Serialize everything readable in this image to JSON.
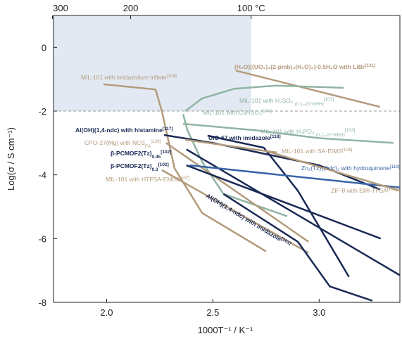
{
  "chart_data": {
    "type": "line",
    "xlabel": "1000T⁻¹ / K⁻¹",
    "ylabel": "Log(σ / S cm⁻¹)",
    "xlim": [
      1.75,
      3.38
    ],
    "ylim": [
      -8,
      1
    ],
    "xticks": [
      {
        "value": 2,
        "label": "2.0"
      },
      {
        "value": 2.5,
        "label": "2.5"
      },
      {
        "value": 3,
        "label": "3.0"
      }
    ],
    "yticks": [
      0,
      -2,
      -4,
      -6,
      -8
    ],
    "xticks_top": [
      {
        "value": 1.745,
        "label": "300"
      },
      {
        "value": 2.113,
        "label": "200"
      },
      {
        "value": 2.68,
        "label": "100 °C"
      }
    ],
    "shaded_region": {
      "xlim": [
        1.75,
        2.68
      ],
      "ylim": [
        -2,
        1
      ],
      "color": "#e3e9f3"
    },
    "reference_line": -2,
    "series": [
      {
        "name": [
          {
            "text": "MIL-101 with imidazolium triflate"
          },
          {
            "text": "[106]",
            "sup": true
          }
        ],
        "color": "#b39b7b",
        "x": [
          1.985,
          2.23,
          2.26,
          2.32,
          2.45,
          2.75
        ],
        "values": [
          -1.16,
          -1.32,
          -2.0,
          -3.8,
          -5.2,
          -6.4
        ]
      },
      {
        "name": [
          {
            "text": "(H₂O)[(UO₂)₄(2-pmb)₃(H₂O)₃]·0.5H₂O with LiBr"
          },
          {
            "text": "[121]",
            "sup": true
          }
        ],
        "color": "#b39b7b",
        "bold": true,
        "x": [
          2.608,
          3.287
        ],
        "values": [
          -0.73,
          -1.87
        ]
      },
      {
        "name": [
          {
            "text": "MIL-101 with H₂SO₄ "
          },
          {
            "text": "(0.1–20 %RH)",
            "sub": true
          },
          {
            "text": "[103]",
            "sup": true
          }
        ],
        "color": "#8fb5a3",
        "x": [
          2.37,
          2.45,
          2.6,
          2.8,
          3.115
        ],
        "values": [
          -2.0,
          -1.6,
          -1.3,
          -1.2,
          -1.27
        ]
      },
      {
        "name": [
          {
            "text": "MIL-101 with CsHSO₄"
          },
          {
            "text": "[104]",
            "sup": true
          }
        ],
        "color": "#8fb5a3",
        "x": [
          2.36,
          2.38,
          2.45,
          2.55,
          2.85
        ],
        "values": [
          -2.1,
          -2.6,
          -3.6,
          -4.6,
          -5.3
        ]
      },
      {
        "name": [
          {
            "text": "MIL-101 with H₃PO₄ "
          },
          {
            "text": "(0.1–20 %RH)",
            "sub": true
          },
          {
            "text": "[103]",
            "sup": true
          }
        ],
        "color": "#8fb5a3",
        "x": [
          2.36,
          2.7,
          3.0,
          3.35
        ],
        "values": [
          -2.4,
          -2.6,
          -2.85,
          -3.0
        ]
      },
      {
        "name": [
          {
            "text": "Al(OH)(1,4-ndc) with histamine"
          },
          {
            "text": "[117]",
            "sup": true
          }
        ],
        "color": "#1a2a55",
        "bold": true,
        "x": [
          2.27,
          2.5,
          3.0,
          3.287
        ],
        "values": [
          -2.75,
          -3.0,
          -3.7,
          -4.46
        ]
      },
      {
        "name": [
          {
            "text": "UiO-67 with imidazole"
          },
          {
            "text": "[118]",
            "sup": true
          }
        ],
        "color": "#1a2a55",
        "bold": true,
        "x": [
          2.475,
          2.74,
          2.9,
          3.14
        ],
        "values": [
          -2.77,
          -3.15,
          -4.5,
          -7.2
        ]
      },
      {
        "name": [
          {
            "text": "CPO-27(Mg) with NCS"
          },
          {
            "text": "FA",
            "sub": true
          },
          {
            "text": "[120]",
            "sup": true
          }
        ],
        "color": "#b39b7b",
        "x": [
          2.28,
          2.95
        ],
        "values": [
          -3.0,
          -6.1
        ]
      },
      {
        "name": [
          {
            "text": "MIL-101 with SA-EIMS"
          },
          {
            "text": "[108]",
            "sup": true
          }
        ],
        "color": "#b39b7b",
        "x": [
          2.37,
          2.8
        ],
        "values": [
          -2.9,
          -3.3
        ]
      },
      {
        "name": [
          {
            "text": "β-PCMOF2(Tz)"
          },
          {
            "text": "0.45",
            "sub": true
          },
          {
            "text": "[102]",
            "sup": true
          }
        ],
        "color": "#1a2a55",
        "bold": true,
        "x": [
          2.375,
          3.38
        ],
        "values": [
          -3.2,
          -7.15
        ]
      },
      {
        "name": [
          {
            "text": "β-PCMOF2(Tz)"
          },
          {
            "text": "0.3",
            "sub": true
          },
          {
            "text": "[102]",
            "sup": true
          }
        ],
        "color": "#1a2a55",
        "bold": true,
        "x": [
          2.375,
          3.29
        ],
        "values": [
          -3.7,
          -6.0
        ]
      },
      {
        "name": [
          {
            "text": "Zn₂(Tz)₂(bdc)₂ with hydroquinone"
          },
          {
            "text": "[119]",
            "sup": true
          }
        ],
        "color": "#3a64a8",
        "x": [
          2.39,
          3.38
        ],
        "values": [
          -3.7,
          -4.4
        ]
      },
      {
        "name": [
          {
            "text": "MIL-101 with HTFSA-EMISI"
          },
          {
            "text": "[107]",
            "sup": true
          }
        ],
        "color": "#b39b7b",
        "x": [
          2.26,
          2.95
        ],
        "values": [
          -3.85,
          -6.45
        ]
      },
      {
        "name": [
          {
            "text": "ZIF-8 with EMI-TFSA"
          },
          {
            "text": "[105]",
            "sup": true
          }
        ],
        "color": "#b39b7b",
        "x": [
          2.75,
          3.38
        ],
        "values": [
          -3.25,
          -4.5
        ]
      },
      {
        "name": [
          {
            "text": "Al(OH)(1,4-ndc) with imidazole"
          },
          {
            "text": "[101]",
            "sup": true
          }
        ],
        "color": "#1a2a55",
        "bold": true,
        "x": [
          2.55,
          2.9,
          3.05,
          3.25
        ],
        "values": [
          -4.6,
          -6.1,
          -7.5,
          -7.95
        ]
      }
    ]
  }
}
